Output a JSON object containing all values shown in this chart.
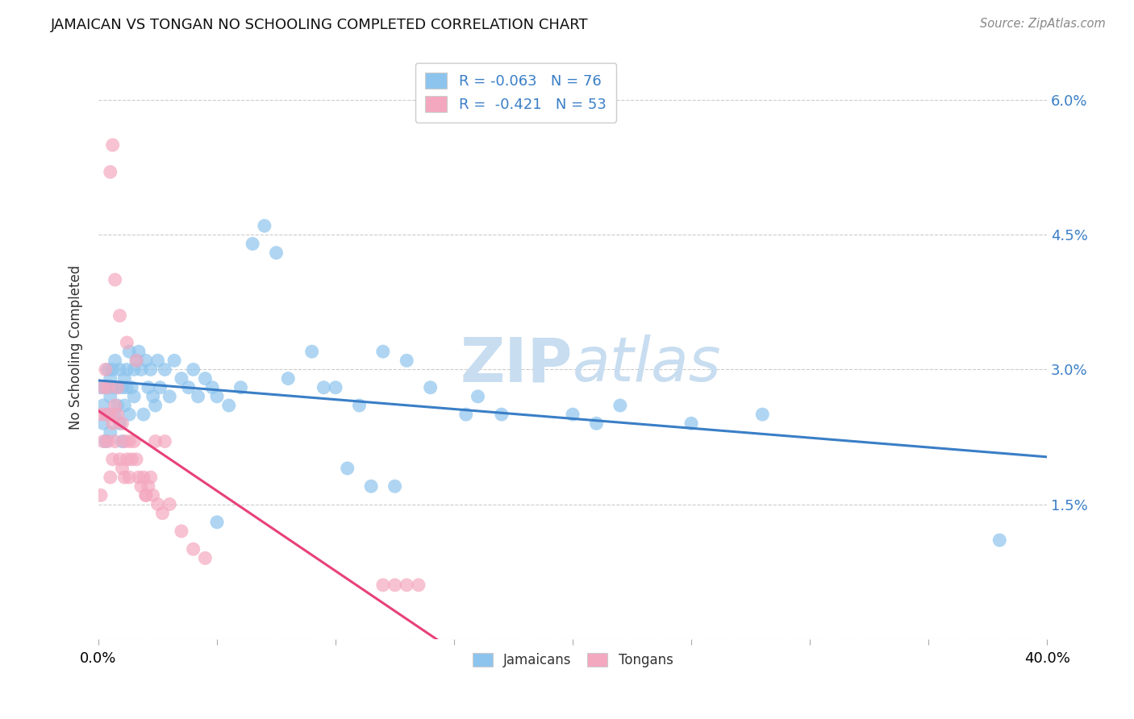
{
  "title": "JAMAICAN VS TONGAN NO SCHOOLING COMPLETED CORRELATION CHART",
  "source": "Source: ZipAtlas.com",
  "ylabel": "No Schooling Completed",
  "yticks": [
    0.0,
    0.015,
    0.03,
    0.045,
    0.06
  ],
  "ytick_labels": [
    "",
    "1.5%",
    "3.0%",
    "4.5%",
    "6.0%"
  ],
  "xlim": [
    0.0,
    0.4
  ],
  "ylim": [
    0.0,
    0.065
  ],
  "jamaican_R": -0.063,
  "jamaican_N": 76,
  "tongan_R": -0.421,
  "tongan_N": 53,
  "jamaican_color": "#8DC4ED",
  "tongan_color": "#F4A8C0",
  "jamaican_line_color": "#3A7EC6",
  "tongan_line_color": "#E8417A",
  "legend_text_color": "#3A7EC6",
  "background_color": "#ffffff",
  "jamaican_x": [
    0.001,
    0.002,
    0.002,
    0.003,
    0.003,
    0.004,
    0.004,
    0.005,
    0.005,
    0.005,
    0.006,
    0.006,
    0.007,
    0.007,
    0.008,
    0.008,
    0.009,
    0.009,
    0.01,
    0.01,
    0.011,
    0.011,
    0.012,
    0.012,
    0.013,
    0.013,
    0.014,
    0.015,
    0.015,
    0.016,
    0.017,
    0.018,
    0.019,
    0.02,
    0.021,
    0.022,
    0.023,
    0.024,
    0.025,
    0.026,
    0.028,
    0.03,
    0.032,
    0.035,
    0.038,
    0.04,
    0.042,
    0.045,
    0.048,
    0.05,
    0.055,
    0.06,
    0.065,
    0.07,
    0.075,
    0.08,
    0.09,
    0.1,
    0.11,
    0.12,
    0.13,
    0.14,
    0.155,
    0.16,
    0.17,
    0.2,
    0.21,
    0.22,
    0.25,
    0.28,
    0.05,
    0.095,
    0.105,
    0.115,
    0.38,
    0.125
  ],
  "jamaican_y": [
    0.028,
    0.026,
    0.024,
    0.022,
    0.028,
    0.025,
    0.03,
    0.027,
    0.023,
    0.029,
    0.028,
    0.03,
    0.025,
    0.031,
    0.026,
    0.028,
    0.024,
    0.03,
    0.028,
    0.022,
    0.029,
    0.026,
    0.03,
    0.028,
    0.025,
    0.032,
    0.028,
    0.03,
    0.027,
    0.031,
    0.032,
    0.03,
    0.025,
    0.031,
    0.028,
    0.03,
    0.027,
    0.026,
    0.031,
    0.028,
    0.03,
    0.027,
    0.031,
    0.029,
    0.028,
    0.03,
    0.027,
    0.029,
    0.028,
    0.027,
    0.026,
    0.028,
    0.044,
    0.046,
    0.043,
    0.029,
    0.032,
    0.028,
    0.026,
    0.032,
    0.031,
    0.028,
    0.025,
    0.027,
    0.025,
    0.025,
    0.024,
    0.026,
    0.024,
    0.025,
    0.013,
    0.028,
    0.019,
    0.017,
    0.011,
    0.017
  ],
  "tongan_x": [
    0.001,
    0.001,
    0.002,
    0.002,
    0.003,
    0.003,
    0.004,
    0.004,
    0.005,
    0.005,
    0.006,
    0.006,
    0.007,
    0.007,
    0.008,
    0.008,
    0.009,
    0.01,
    0.01,
    0.011,
    0.011,
    0.012,
    0.013,
    0.013,
    0.014,
    0.015,
    0.016,
    0.017,
    0.018,
    0.019,
    0.02,
    0.021,
    0.022,
    0.023,
    0.025,
    0.027,
    0.03,
    0.035,
    0.04,
    0.045,
    0.005,
    0.006,
    0.007,
    0.009,
    0.012,
    0.016,
    0.02,
    0.024,
    0.028,
    0.12,
    0.125,
    0.13,
    0.135
  ],
  "tongan_y": [
    0.025,
    0.016,
    0.028,
    0.022,
    0.025,
    0.03,
    0.022,
    0.028,
    0.018,
    0.025,
    0.02,
    0.024,
    0.026,
    0.022,
    0.028,
    0.025,
    0.02,
    0.019,
    0.024,
    0.018,
    0.022,
    0.02,
    0.018,
    0.022,
    0.02,
    0.022,
    0.02,
    0.018,
    0.017,
    0.018,
    0.016,
    0.017,
    0.018,
    0.016,
    0.015,
    0.014,
    0.015,
    0.012,
    0.01,
    0.009,
    0.052,
    0.055,
    0.04,
    0.036,
    0.033,
    0.031,
    0.016,
    0.022,
    0.022,
    0.006,
    0.006,
    0.006,
    0.006
  ]
}
